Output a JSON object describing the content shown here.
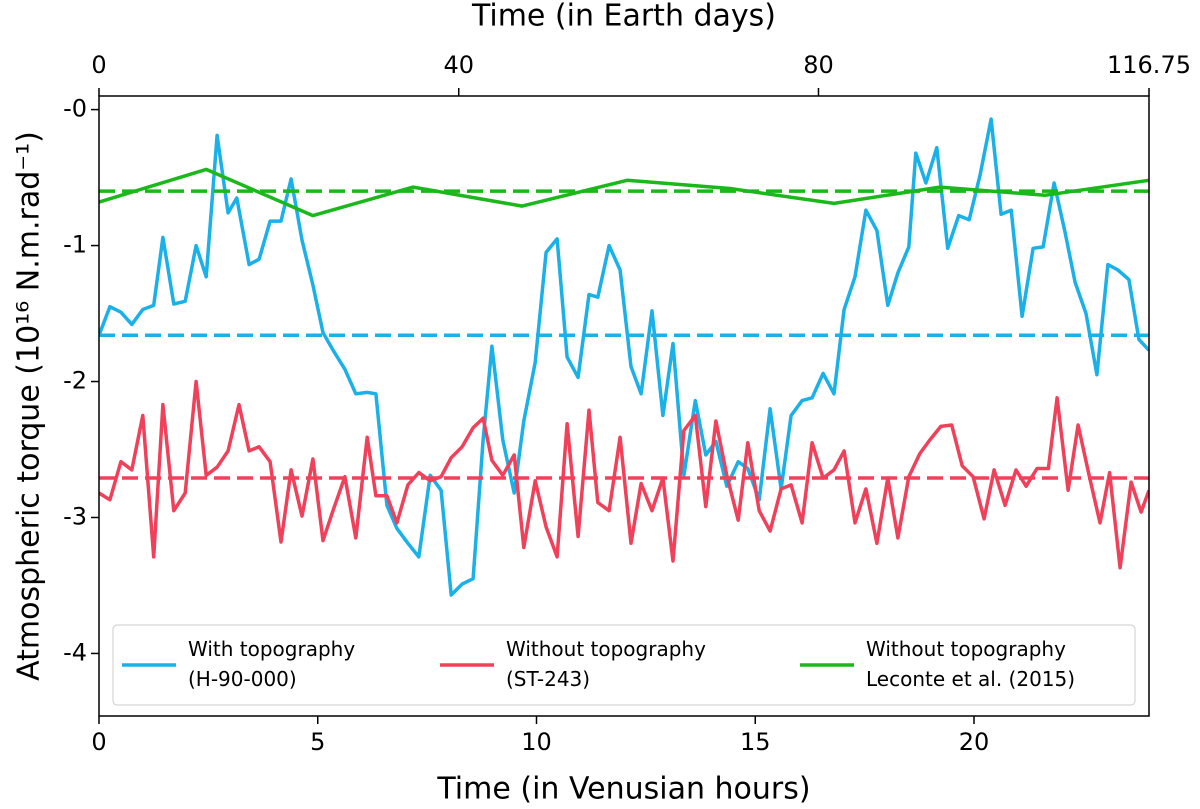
{
  "chart_data": {
    "type": "line",
    "xlabel": "Time (in Venusian hours)",
    "x2label": "Time (in Earth days)",
    "ylabel": "Atmospheric torque (10¹⁶ N.m.rad⁻¹)",
    "xlim": [
      0,
      24
    ],
    "xticks": [
      0,
      5,
      10,
      15,
      20
    ],
    "x2lim": [
      0,
      116.75
    ],
    "x2ticks": [
      0,
      40,
      80,
      116.75
    ],
    "ylim": [
      -4.46,
      0.1
    ],
    "yticks": [
      {
        "value": 0,
        "label": "-0"
      },
      -1,
      -2,
      -3,
      -4
    ],
    "legend": "lower center",
    "series": [
      {
        "name": "With topography\n(H-90-000)",
        "color": "#1ab0e8",
        "mean": -1.66,
        "x": [
          0,
          0.25,
          0.5,
          0.75,
          1,
          1.25,
          1.46,
          1.71,
          1.97,
          2.22,
          2.45,
          2.7,
          2.95,
          3.15,
          3.43,
          3.66,
          3.91,
          4.16,
          4.39,
          4.64,
          4.89,
          5.12,
          5.37,
          5.62,
          5.87,
          6.13,
          6.33,
          6.58,
          6.81,
          7.06,
          7.31,
          7.57,
          7.82,
          8.05,
          8.3,
          8.55,
          8.78,
          8.98,
          9.23,
          9.49,
          9.71,
          9.97,
          10.22,
          10.47,
          10.7,
          10.95,
          11.2,
          11.4,
          11.66,
          11.91,
          12.16,
          12.39,
          12.64,
          12.89,
          13.12,
          13.37,
          13.63,
          13.87,
          14.1,
          14.35,
          14.61,
          14.83,
          15.09,
          15.34,
          15.59,
          15.82,
          16.07,
          16.3,
          16.55,
          16.8,
          17.03,
          17.28,
          17.53,
          17.78,
          18.03,
          18.26,
          18.51,
          18.67,
          18.9,
          19.15,
          19.4,
          19.65,
          19.89,
          20.14,
          20.39,
          20.62,
          20.85,
          21.1,
          21.35,
          21.58,
          21.83,
          22.08,
          22.31,
          22.56,
          22.81,
          23.06,
          23.29,
          23.54,
          23.77,
          24
        ],
        "values": [
          -1.66,
          -1.45,
          -1.49,
          -1.58,
          -1.47,
          -1.44,
          -0.94,
          -1.43,
          -1.41,
          -1.0,
          -1.23,
          -0.19,
          -0.76,
          -0.65,
          -1.14,
          -1.1,
          -0.82,
          -0.82,
          -0.51,
          -0.96,
          -1.29,
          -1.64,
          -1.78,
          -1.91,
          -2.09,
          -2.08,
          -2.09,
          -2.91,
          -3.08,
          -3.19,
          -3.29,
          -2.69,
          -2.8,
          -3.57,
          -3.49,
          -3.45,
          -2.43,
          -1.74,
          -2.43,
          -2.82,
          -2.29,
          -1.86,
          -1.05,
          -0.95,
          -1.82,
          -1.97,
          -1.36,
          -1.38,
          -1.0,
          -1.18,
          -1.89,
          -2.09,
          -1.48,
          -2.25,
          -1.72,
          -2.69,
          -2.14,
          -2.54,
          -2.44,
          -2.77,
          -2.59,
          -2.64,
          -2.87,
          -2.2,
          -2.79,
          -2.25,
          -2.14,
          -2.12,
          -1.94,
          -2.09,
          -1.47,
          -1.23,
          -0.74,
          -0.89,
          -1.44,
          -1.2,
          -1.01,
          -0.32,
          -0.54,
          -0.28,
          -1.02,
          -0.78,
          -0.81,
          -0.48,
          -0.07,
          -0.77,
          -0.74,
          -1.52,
          -1.02,
          -1.01,
          -0.54,
          -0.9,
          -1.27,
          -1.5,
          -1.95,
          -1.14,
          -1.18,
          -1.25,
          -1.69,
          -1.77
        ]
      },
      {
        "name": "Without topography\n(ST-243)",
        "color": "#f0405a",
        "mean": -2.71,
        "x": [
          0,
          0.25,
          0.5,
          0.75,
          1,
          1.25,
          1.46,
          1.71,
          1.97,
          2.22,
          2.45,
          2.7,
          2.95,
          3.2,
          3.43,
          3.66,
          3.91,
          4.16,
          4.39,
          4.64,
          4.89,
          5.12,
          5.37,
          5.62,
          5.87,
          6.13,
          6.33,
          6.58,
          6.81,
          7.06,
          7.31,
          7.57,
          7.82,
          8.05,
          8.3,
          8.55,
          8.78,
          8.98,
          9.23,
          9.49,
          9.71,
          9.97,
          10.22,
          10.47,
          10.7,
          10.95,
          11.2,
          11.4,
          11.66,
          11.91,
          12.16,
          12.39,
          12.64,
          12.89,
          13.12,
          13.37,
          13.63,
          13.87,
          14.1,
          14.35,
          14.61,
          14.83,
          15.09,
          15.34,
          15.59,
          15.82,
          16.07,
          16.3,
          16.55,
          16.8,
          17.03,
          17.28,
          17.53,
          17.78,
          18.03,
          18.26,
          18.51,
          18.76,
          18.99,
          19.24,
          19.49,
          19.73,
          19.98,
          20.23,
          20.46,
          20.71,
          20.96,
          21.19,
          21.44,
          21.7,
          21.9,
          22.15,
          22.38,
          22.63,
          22.88,
          23.1,
          23.34,
          23.59,
          23.82,
          24
        ],
        "values": [
          -2.82,
          -2.87,
          -2.59,
          -2.65,
          -2.25,
          -3.29,
          -2.17,
          -2.95,
          -2.82,
          -2.0,
          -2.69,
          -2.63,
          -2.51,
          -2.17,
          -2.51,
          -2.48,
          -2.59,
          -3.18,
          -2.65,
          -2.99,
          -2.57,
          -3.17,
          -2.93,
          -2.7,
          -3.15,
          -2.41,
          -2.84,
          -2.84,
          -3.04,
          -2.76,
          -2.67,
          -2.73,
          -2.7,
          -2.56,
          -2.48,
          -2.34,
          -2.27,
          -2.58,
          -2.69,
          -2.54,
          -3.22,
          -2.73,
          -3.07,
          -3.29,
          -2.31,
          -3.14,
          -2.21,
          -2.89,
          -2.95,
          -2.41,
          -3.19,
          -2.75,
          -2.95,
          -2.71,
          -3.32,
          -2.36,
          -2.25,
          -2.92,
          -2.29,
          -2.69,
          -3.02,
          -2.45,
          -2.95,
          -3.1,
          -2.79,
          -2.76,
          -3.04,
          -2.45,
          -2.71,
          -2.65,
          -2.51,
          -3.04,
          -2.79,
          -3.19,
          -2.71,
          -3.15,
          -2.7,
          -2.53,
          -2.43,
          -2.33,
          -2.32,
          -2.62,
          -2.7,
          -3.01,
          -2.65,
          -2.91,
          -2.65,
          -2.77,
          -2.64,
          -2.64,
          -2.12,
          -2.8,
          -2.32,
          -2.69,
          -3.04,
          -2.67,
          -3.37,
          -2.74,
          -2.96,
          -2.8
        ]
      },
      {
        "name": "Without topography\nLeconte et al. (2015)",
        "color": "#1ab81a",
        "mean": -0.6,
        "x": [
          0,
          2.45,
          4.89,
          7.18,
          9.67,
          12.07,
          14.42,
          16.8,
          19.22,
          21.62,
          24
        ],
        "values": [
          -0.68,
          -0.44,
          -0.78,
          -0.57,
          -0.71,
          -0.52,
          -0.58,
          -0.69,
          -0.57,
          -0.63,
          -0.52
        ]
      }
    ]
  }
}
